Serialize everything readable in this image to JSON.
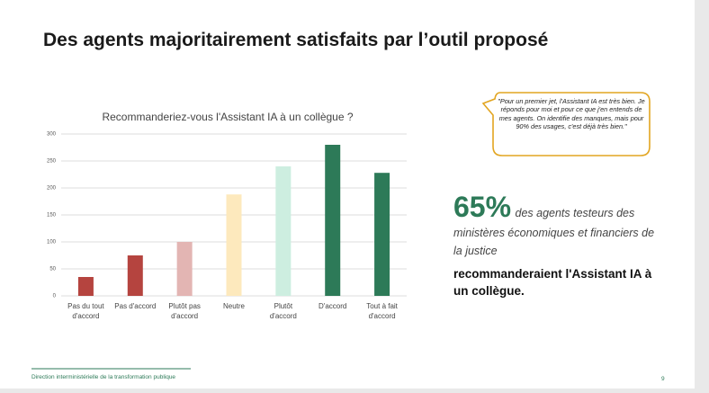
{
  "header": {
    "title": "Des agents majoritairement satisfaits par l’outil proposé"
  },
  "chart_data": {
    "type": "bar",
    "title": "Recommanderiez-vous l'Assistant IA à un collègue ?",
    "categories": [
      "Pas du tout\nd'accord",
      "Pas d'accord",
      "Plutôt pas\nd'accord",
      "Neutre",
      "Plutôt\nd'accord",
      "D'accord",
      "Tout à fait\nd'accord"
    ],
    "values": [
      35,
      75,
      100,
      188,
      240,
      280,
      228
    ],
    "colors": [
      "#b5443f",
      "#b5443f",
      "#e3b5b3",
      "#fde9bd",
      "#cdeee0",
      "#2d7a58",
      "#2d7a58"
    ],
    "ylim": [
      0,
      300
    ],
    "yticks": [
      0,
      50,
      100,
      150,
      200,
      250,
      300
    ],
    "grid": true
  },
  "quote": {
    "text": "\"Pour un premier jet, l'Assistant IA est très bien. Je réponds pour moi et pour ce que j'en entends de mes agents. On identifie des manques, mais pour 90% des usages, c'est déjà très bien.\""
  },
  "stat": {
    "figure": "65%",
    "text": "des agents testeurs des ministères économiques et financiers de la justice",
    "emphasis": "recommanderaient l'Assistant IA à un collègue."
  },
  "footer": {
    "text": "Direction interministérielle de la transformation publique",
    "page": "9"
  }
}
